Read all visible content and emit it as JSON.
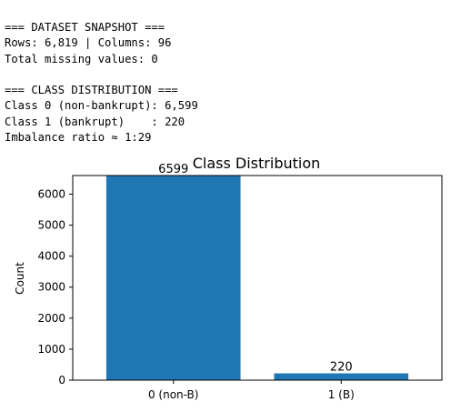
{
  "console": {
    "lines": [
      "=== DATASET SNAPSHOT ===",
      "Rows: 6,819 | Columns: 96",
      "Total missing values: 0",
      "",
      "=== CLASS DISTRIBUTION ===",
      "Class 0 (non-bankrupt): 6,599",
      "Class 1 (bankrupt)    : 220",
      "Imbalance ratio ≈ 1:29"
    ]
  },
  "chart_data": {
    "type": "bar",
    "title": "Class Distribution",
    "xlabel": "",
    "ylabel": "Count",
    "categories": [
      "0 (non-B)",
      "1 (B)"
    ],
    "values": [
      6599,
      220
    ],
    "data_labels": [
      "6599",
      "220"
    ],
    "ylim": [
      0,
      6600
    ],
    "yticks": [
      0,
      1000,
      2000,
      3000,
      4000,
      5000,
      6000
    ],
    "grid": false,
    "bar_color": "#1f77b4"
  }
}
